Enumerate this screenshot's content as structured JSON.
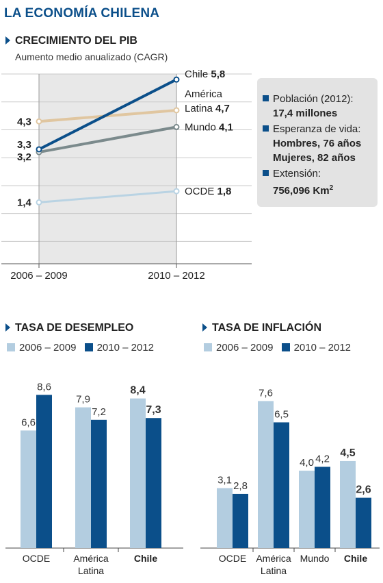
{
  "title": "LA ECONOMÍA CHILENA",
  "gdp": {
    "title": "CRECIMIENTO DEL PIB",
    "subtitle": "Aumento medio anualizado (CAGR)"
  },
  "info": {
    "poblacion_label": "Población (2012):",
    "poblacion_value": "17,4 millones",
    "esperanza_label": "Esperanza de vida:",
    "hombres": "Hombres, 76 años",
    "mujeres": "Mujeres, 82 años",
    "extension_label": "Extensión:",
    "extension_value": "756,096 Km",
    "extension_sup": "2"
  },
  "desempleo": {
    "title": "TASA DE DESEMPLEO",
    "legend": [
      "2006 – 2009",
      "2010 – 2012"
    ]
  },
  "inflacion": {
    "title": "TASA DE INFLACIÓN",
    "legend": [
      "2006 – 2009",
      "2010 – 2012"
    ]
  },
  "colors": {
    "dark_blue": "#0b4f8a",
    "light_blue": "#b3cde0",
    "chile_line": "#0b4f8a",
    "latam_line": "#e0c6a0",
    "mundo_line": "#7b8a8c",
    "ocde_line": "#b9d3e3",
    "panel_gray": "#e8e8e8"
  },
  "chart_data": [
    {
      "type": "line",
      "title": "CRECIMIENTO DEL PIB",
      "subtitle": "Aumento medio anualizado (CAGR)",
      "categories": [
        "2006 – 2009",
        "2010 – 2012"
      ],
      "series": [
        {
          "name": "Chile",
          "values": [
            3.3,
            5.8
          ],
          "labels": [
            "3,3",
            "5,8"
          ],
          "end_label": [
            "Chile"
          ]
        },
        {
          "name": "América Latina",
          "values": [
            4.3,
            4.7
          ],
          "labels": [
            "4,3",
            "4,7"
          ],
          "end_label": [
            "América",
            "Latina"
          ]
        },
        {
          "name": "Mundo",
          "values": [
            3.2,
            4.1
          ],
          "labels": [
            "3,2",
            "4,1"
          ],
          "end_label": [
            "Mundo"
          ]
        },
        {
          "name": "OCDE",
          "values": [
            1.4,
            1.8
          ],
          "labels": [
            "1,4",
            "1,8"
          ],
          "end_label": [
            "OCDE"
          ]
        }
      ],
      "ylim": [
        -0.8,
        6.0
      ],
      "grid": true
    },
    {
      "type": "bar",
      "title": "TASA DE DESEMPLEO",
      "categories": [
        "OCDE",
        "América Latina",
        "Chile"
      ],
      "category_lines": [
        [
          "OCDE"
        ],
        [
          "América",
          "Latina"
        ],
        [
          "Chile"
        ]
      ],
      "bold_categories": [
        "Chile"
      ],
      "series": [
        {
          "name": "2006 – 2009",
          "values": [
            6.6,
            7.9,
            8.4
          ],
          "labels": [
            "6,6",
            "7,9",
            "8,4"
          ]
        },
        {
          "name": "2010 – 2012",
          "values": [
            8.6,
            7.2,
            7.3
          ],
          "labels": [
            "8,6",
            "7,2",
            "7,3"
          ]
        }
      ],
      "ylim": [
        0,
        10
      ]
    },
    {
      "type": "bar",
      "title": "TASA DE INFLACIÓN",
      "categories": [
        "OCDE",
        "América Latina",
        "Mundo",
        "Chile"
      ],
      "category_lines": [
        [
          "OCDE"
        ],
        [
          "América",
          "Latina"
        ],
        [
          "Mundo"
        ],
        [
          "Chile"
        ]
      ],
      "bold_categories": [
        "Chile"
      ],
      "series": [
        {
          "name": "2006 – 2009",
          "values": [
            3.1,
            7.6,
            4.0,
            4.5
          ],
          "labels": [
            "3,1",
            "7,6",
            "4,0",
            "4,5"
          ]
        },
        {
          "name": "2010 – 2012",
          "values": [
            2.8,
            6.5,
            4.2,
            2.6
          ],
          "labels": [
            "2,8",
            "6,5",
            "4,2",
            "2,6"
          ]
        }
      ],
      "ylim": [
        0,
        8.5
      ]
    }
  ]
}
